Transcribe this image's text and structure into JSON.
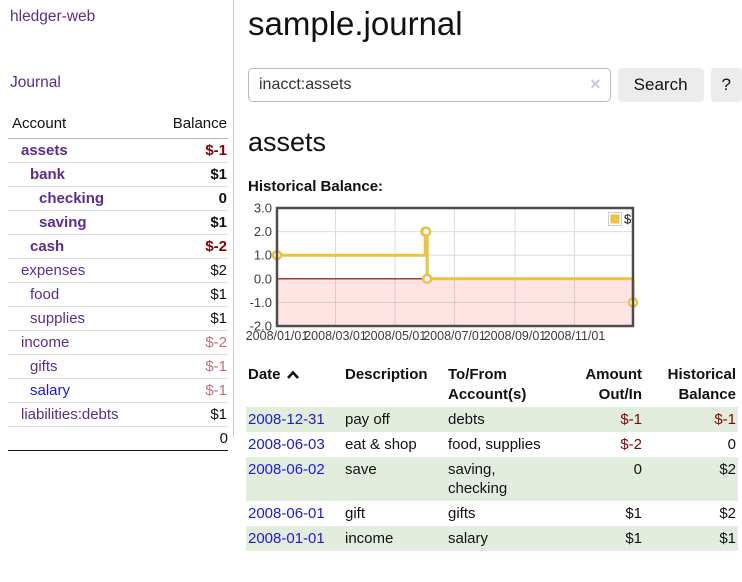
{
  "colors": {
    "purple": "#5c2d91",
    "blue": "#1b1bd6",
    "neg_strong": "#8b0000",
    "neg_soft": "#bf7276",
    "row_green": "#e2edde",
    "accent_yellow": "#edc240"
  },
  "sidebar": {
    "app_title": "hledger-web",
    "journal_link": "Journal",
    "accounts_table": {
      "headers": {
        "account": "Account",
        "balance": "Balance"
      },
      "rows": [
        {
          "name": "assets",
          "depth": 1,
          "balance": "$-1",
          "bold": true,
          "negative": "strong"
        },
        {
          "name": "bank",
          "depth": 2,
          "balance": "$1",
          "bold": true
        },
        {
          "name": "checking",
          "depth": 3,
          "balance": "0",
          "bold": true
        },
        {
          "name": "saving",
          "depth": 3,
          "balance": "$1",
          "bold": true
        },
        {
          "name": "cash",
          "depth": 2,
          "balance": "$-2",
          "bold": true,
          "negative": "strong"
        },
        {
          "name": "expenses",
          "depth": 1,
          "balance": "$2"
        },
        {
          "name": "food",
          "depth": 2,
          "balance": "$1"
        },
        {
          "name": "supplies",
          "depth": 2,
          "balance": "$1"
        },
        {
          "name": "income",
          "depth": 1,
          "balance": "$-2",
          "negative": "soft"
        },
        {
          "name": "gifts",
          "depth": 2,
          "balance": "$-1",
          "negative": "soft"
        },
        {
          "name": "salary",
          "depth": 2,
          "balance": "$-1",
          "negative": "soft",
          "link_style": "unvisited"
        },
        {
          "name": "liabilities:debts",
          "depth": 1,
          "balance": "$1"
        }
      ],
      "total": "0"
    }
  },
  "main": {
    "title": "sample.journal",
    "account_heading": "assets",
    "chart_label": "Historical Balance:"
  },
  "search": {
    "value": "inacct:assets",
    "clear_icon": "×",
    "button_label": "Search",
    "help_label": "?"
  },
  "chart_data": {
    "type": "line",
    "step": true,
    "title": "Historical Balance:",
    "series": [
      {
        "name": "$",
        "color": "#edc240",
        "points": [
          [
            "2008-01-01",
            1
          ],
          [
            "2008-06-01",
            2
          ],
          [
            "2008-06-02",
            2
          ],
          [
            "2008-06-03",
            0
          ],
          [
            "2008-12-31",
            -1
          ]
        ]
      }
    ],
    "x_range": [
      "2008-01-01",
      "2008-12-31"
    ],
    "x_ticks": [
      {
        "date": "2008-01-01",
        "label": "2008/01/01"
      },
      {
        "date": "2008-03-01",
        "label": "2008/03/01"
      },
      {
        "date": "2008-05-01",
        "label": "2008/05/01"
      },
      {
        "date": "2008-07-01",
        "label": "2008/07/01"
      },
      {
        "date": "2008-09-01",
        "label": "2008/09/01"
      },
      {
        "date": "2008-11-01",
        "label": "2008/11/01"
      }
    ],
    "y_range": [
      -2,
      3
    ],
    "y_ticks": [
      {
        "value": 3,
        "label": "3.0"
      },
      {
        "value": 2,
        "label": "2.0"
      },
      {
        "value": 1,
        "label": "1.0"
      },
      {
        "value": 0,
        "label": "0.0"
      },
      {
        "value": -1,
        "label": "-1.0"
      },
      {
        "value": -2,
        "label": "-2.0"
      }
    ],
    "grid": true,
    "legend_position": "top-right",
    "negative_region": true,
    "zero_line_color": "#8b0000"
  },
  "register": {
    "columns": [
      {
        "label": "Date",
        "sortable": true,
        "sort_icon": "chevron-up"
      },
      {
        "label": "Description"
      },
      {
        "label": "To/From Account(s)"
      },
      {
        "label": "Amount Out/In"
      },
      {
        "label": "Historical Balance"
      }
    ],
    "rows": [
      {
        "date": "2008-12-31",
        "description": "pay off",
        "accounts": "debts",
        "amount": "$-1",
        "amount_negative": true,
        "balance": "$-1",
        "balance_negative": true
      },
      {
        "date": "2008-06-03",
        "description": "eat & shop",
        "accounts": "food, supplies",
        "amount": "$-2",
        "amount_negative": true,
        "balance": "0",
        "balance_negative": false
      },
      {
        "date": "2008-06-02",
        "description": "save",
        "accounts": "saving, checking",
        "amount": "0",
        "amount_negative": false,
        "balance": "$2",
        "balance_negative": false
      },
      {
        "date": "2008-06-01",
        "description": "gift",
        "accounts": "gifts",
        "amount": "$1",
        "amount_negative": false,
        "balance": "$2",
        "balance_negative": false
      },
      {
        "date": "2008-01-01",
        "description": "income",
        "accounts": "salary",
        "amount": "$1",
        "amount_negative": false,
        "balance": "$1",
        "balance_negative": false
      }
    ]
  }
}
